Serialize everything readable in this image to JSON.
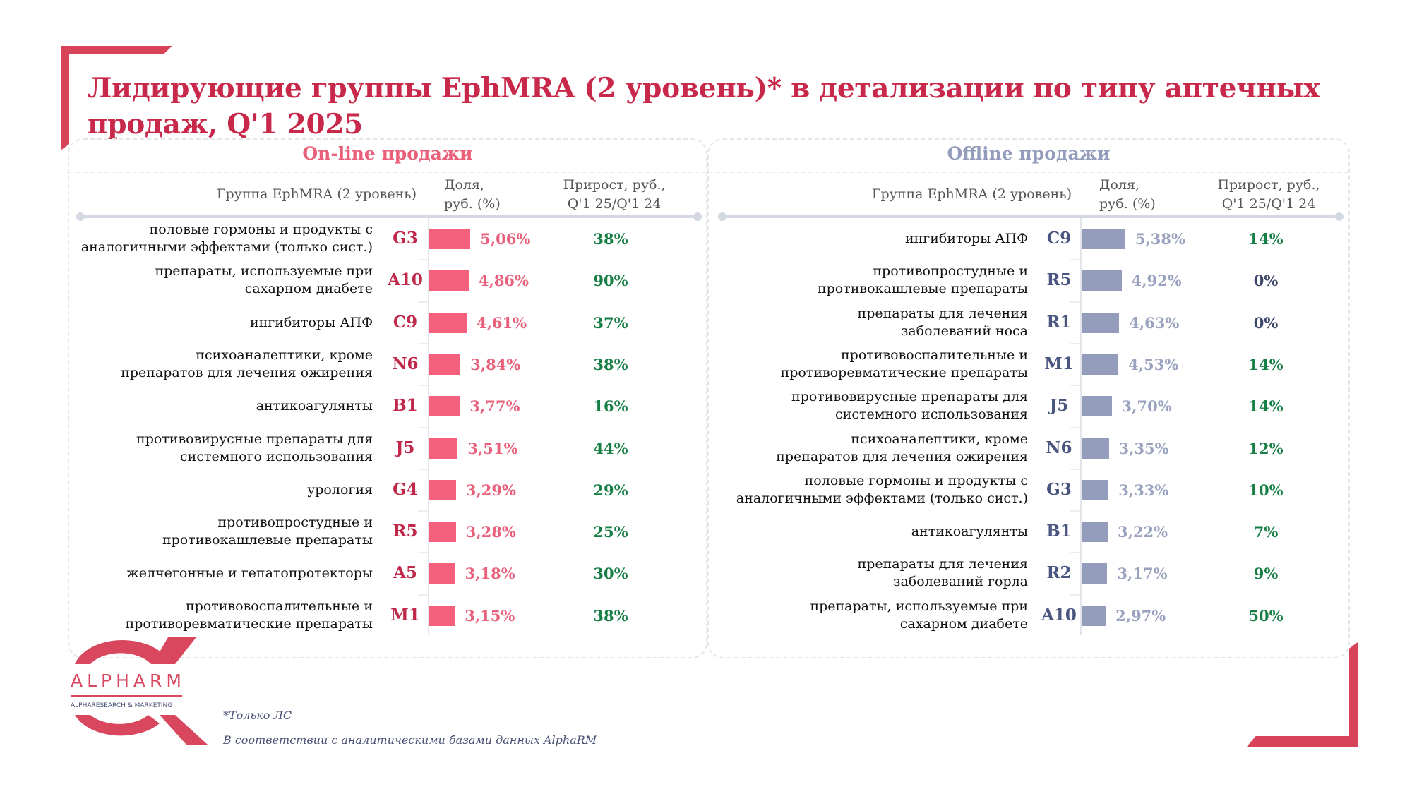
{
  "title": "Лидирующие группы EphMRA (2 уровень)* в детализации по типу аптечных продаж, Q'1 2025",
  "colors": {
    "title": "#c8284a",
    "brand_red": "#d8435a",
    "online_bar": "#f45f7b",
    "online_value": "#e8607a",
    "online_code": "#c0284a",
    "offline_bar": "#939dbb",
    "offline_value": "#99a2be",
    "offline_code": "#4a5580",
    "growth_positive": "#177f45",
    "growth_zero": "#3a4568"
  },
  "columns": {
    "group": "Группа EphMRA (2 уровень)",
    "share_line1": "Доля,",
    "share_line2": "руб. (%)",
    "growth_line1": "Прирост, руб.,",
    "growth_line2": "Q'1 25/Q'1 24"
  },
  "footnotes": {
    "only_ls": "*Только ЛС",
    "source": "В соответствии с аналитическими базами данных AlphaRM"
  },
  "logo": {
    "name": "ALPHARM",
    "tagline": "ALPHARESEARCH & MARKETING"
  },
  "chart_data": [
    {
      "type": "bar",
      "orientation": "horizontal",
      "title": "On-line продажи",
      "xlabel": "Доля, руб. (%)",
      "ylabel": "Группа EphMRA (2 уровень)",
      "xlim": [
        0,
        6
      ],
      "categories": [
        "половые гормоны и продукты с аналогичными эффектами (только сист.)",
        "препараты, используемые при сахарном диабете",
        "ингибиторы АПФ",
        "психоаналептики, кроме препаратов для лечения ожирения",
        "антикоагулянты",
        "противовирусные препараты для системного использования",
        "урология",
        "противопростудные и противокашлевые препараты",
        "желчегонные и гепатопротекторы",
        "противовоспалительные и противоревматические препараты"
      ],
      "label_lines": [
        [
          "половые гормоны и продукты с",
          "аналогичными эффектами (только сист.)"
        ],
        [
          "препараты, используемые при",
          "сахарном диабете"
        ],
        [
          "ингибиторы АПФ"
        ],
        [
          "психоаналептики, кроме",
          "препаратов для лечения ожирения"
        ],
        [
          "антикоагулянты"
        ],
        [
          "противовирусные препараты для",
          "системного использования"
        ],
        [
          "урология"
        ],
        [
          "противопростудные и",
          "противокашлевые препараты"
        ],
        [
          "желчегонные и гепатопротекторы"
        ],
        [
          "противовоспалительные и",
          "противоревматические препараты"
        ]
      ],
      "codes": [
        "G3",
        "A10",
        "C9",
        "N6",
        "B1",
        "J5",
        "G4",
        "R5",
        "A5",
        "M1"
      ],
      "values": [
        5.06,
        4.86,
        4.61,
        3.84,
        3.77,
        3.51,
        3.29,
        3.28,
        3.18,
        3.15
      ],
      "value_labels": [
        "5,06%",
        "4,86%",
        "4,61%",
        "3,84%",
        "3,77%",
        "3,51%",
        "3,29%",
        "3,28%",
        "3,18%",
        "3,15%"
      ],
      "growth": [
        38,
        90,
        37,
        38,
        16,
        44,
        29,
        25,
        30,
        38
      ],
      "growth_labels": [
        "38%",
        "90%",
        "37%",
        "38%",
        "16%",
        "44%",
        "29%",
        "25%",
        "30%",
        "38%"
      ]
    },
    {
      "type": "bar",
      "orientation": "horizontal",
      "title": "Offline продажи",
      "xlabel": "Доля, руб. (%)",
      "ylabel": "Группа EphMRA (2 уровень)",
      "xlim": [
        0,
        6
      ],
      "categories": [
        "ингибиторы АПФ",
        "противопростудные и противокашлевые препараты",
        "препараты для лечения заболеваний носа",
        "противовоспалительные и противоревматические препараты",
        "противовирусные препараты для системного использования",
        "психоаналептики, кроме препаратов для лечения ожирения",
        "половые гормоны и продукты с аналогичными эффектами (только сист.)",
        "антикоагулянты",
        "препараты для лечения заболеваний горла",
        "препараты, используемые при сахарном диабете"
      ],
      "label_lines": [
        [
          "ингибиторы АПФ"
        ],
        [
          "противопростудные и",
          "противокашлевые препараты"
        ],
        [
          "препараты для лечения",
          "заболеваний носа"
        ],
        [
          "противовоспалительные и",
          "противоревматические препараты"
        ],
        [
          "противовирусные препараты для",
          "системного использования"
        ],
        [
          "психоаналептики, кроме",
          "препаратов для лечения ожирения"
        ],
        [
          "половые гормоны и продукты с",
          "аналогичными эффектами (только сист.)"
        ],
        [
          "антикоагулянты"
        ],
        [
          "препараты для лечения",
          "заболеваний горла"
        ],
        [
          "препараты, используемые при",
          "сахарном диабете"
        ]
      ],
      "codes": [
        "C9",
        "R5",
        "R1",
        "M1",
        "J5",
        "N6",
        "G3",
        "B1",
        "R2",
        "A10"
      ],
      "values": [
        5.38,
        4.92,
        4.63,
        4.53,
        3.7,
        3.35,
        3.33,
        3.22,
        3.17,
        2.97
      ],
      "value_labels": [
        "5,38%",
        "4,92%",
        "4,63%",
        "4,53%",
        "3,70%",
        "3,35%",
        "3,33%",
        "3,22%",
        "3,17%",
        "2,97%"
      ],
      "growth": [
        14,
        0,
        0,
        14,
        14,
        12,
        10,
        7,
        9,
        50
      ],
      "growth_labels": [
        "14%",
        "0%",
        "0%",
        "14%",
        "14%",
        "12%",
        "10%",
        "7%",
        "9%",
        "50%"
      ]
    }
  ]
}
